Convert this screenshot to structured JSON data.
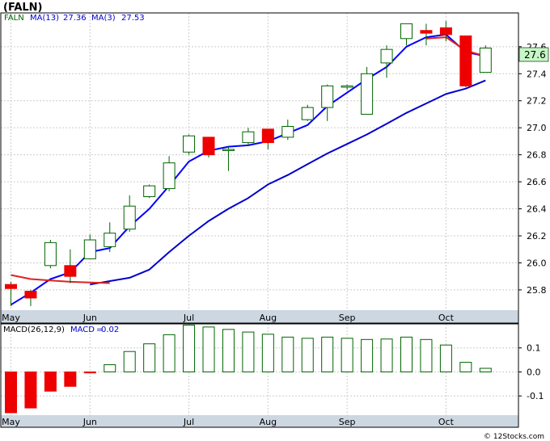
{
  "ticker_title": "(FALN)",
  "watermark": "© 12Stocks.com",
  "colors": {
    "up_fill": "#ffffff",
    "up_stroke": "#006400",
    "down_fill": "#ee0000",
    "ma_fast": "#0000ff",
    "ma_slow": "#0000cc",
    "ma_short_tail": "#dd2222",
    "last_price_box": "#c6f7c6",
    "grid": "#cccccc",
    "panel_border": "#000000",
    "axis_strip": "#cdd7e2"
  },
  "chart_data": [
    {
      "type": "candlestick",
      "legend": [
        {
          "label": "FALN",
          "color": "#006400"
        },
        {
          "label": "MA(13)",
          "value": "27.36",
          "color": "#0000cc"
        },
        {
          "label": "MA(3)",
          "value": "27.53",
          "color": "#0000cc"
        }
      ],
      "last_price_label": "27.6",
      "ylim": [
        25.65,
        27.85
      ],
      "yticks": [
        "25.8",
        "26.0",
        "26.2",
        "26.4",
        "26.6",
        "26.8",
        "27.0",
        "27.2",
        "27.4",
        "27.6"
      ],
      "x_labels": [
        {
          "label": "May",
          "index": 1
        },
        {
          "label": "Jun",
          "index": 5
        },
        {
          "label": "Jul",
          "index": 10
        },
        {
          "label": "Aug",
          "index": 14
        },
        {
          "label": "Sep",
          "index": 18
        },
        {
          "label": "Oct",
          "index": 23
        }
      ],
      "candles": [
        {
          "open": 25.84,
          "high": 25.86,
          "low": 25.68,
          "close": 25.81
        },
        {
          "open": 25.79,
          "high": 25.8,
          "low": 25.68,
          "close": 25.74
        },
        {
          "open": 25.98,
          "high": 26.17,
          "low": 25.96,
          "close": 26.15
        },
        {
          "open": 25.98,
          "high": 26.1,
          "low": 25.85,
          "close": 25.9
        },
        {
          "open": 26.03,
          "high": 26.21,
          "low": 26.03,
          "close": 26.17
        },
        {
          "open": 26.12,
          "high": 26.3,
          "low": 26.08,
          "close": 26.22
        },
        {
          "open": 26.25,
          "high": 26.5,
          "low": 26.23,
          "close": 26.42
        },
        {
          "open": 26.49,
          "high": 26.58,
          "low": 26.48,
          "close": 26.57
        },
        {
          "open": 26.55,
          "high": 26.79,
          "low": 26.53,
          "close": 26.74
        },
        {
          "open": 26.82,
          "high": 26.95,
          "low": 26.8,
          "close": 26.94
        },
        {
          "open": 26.93,
          "high": 26.93,
          "low": 26.78,
          "close": 26.8
        },
        {
          "open": 26.84,
          "high": 26.86,
          "low": 26.68,
          "close": 26.84
        },
        {
          "open": 26.89,
          "high": 27.0,
          "low": 26.87,
          "close": 26.97
        },
        {
          "open": 26.99,
          "high": 26.99,
          "low": 26.84,
          "close": 26.89
        },
        {
          "open": 26.93,
          "high": 27.06,
          "low": 26.91,
          "close": 27.01
        },
        {
          "open": 27.06,
          "high": 27.17,
          "low": 27.05,
          "close": 27.15
        },
        {
          "open": 27.15,
          "high": 27.32,
          "low": 27.05,
          "close": 27.31
        },
        {
          "open": 27.3,
          "high": 27.32,
          "low": 27.28,
          "close": 27.31
        },
        {
          "open": 27.1,
          "high": 27.45,
          "low": 27.1,
          "close": 27.4
        },
        {
          "open": 27.48,
          "high": 27.61,
          "low": 27.37,
          "close": 27.58
        },
        {
          "open": 27.66,
          "high": 27.77,
          "low": 27.61,
          "close": 27.77
        },
        {
          "open": 27.72,
          "high": 27.77,
          "low": 27.61,
          "close": 27.7
        },
        {
          "open": 27.74,
          "high": 27.79,
          "low": 27.64,
          "close": 27.69
        },
        {
          "open": 27.68,
          "high": 27.68,
          "low": 27.3,
          "close": 27.31
        },
        {
          "open": 27.41,
          "high": 27.61,
          "low": 27.41,
          "close": 27.59
        }
      ],
      "ma13": [
        {
          "index": 5,
          "value": 25.84
        },
        {
          "index": 7,
          "value": 25.89
        },
        {
          "index": 8,
          "value": 25.95
        },
        {
          "index": 9,
          "value": 26.08
        },
        {
          "index": 10,
          "value": 26.2
        },
        {
          "index": 11,
          "value": 26.31
        },
        {
          "index": 12,
          "value": 26.4
        },
        {
          "index": 13,
          "value": 26.48
        },
        {
          "index": 14,
          "value": 26.58
        },
        {
          "index": 15,
          "value": 26.65
        },
        {
          "index": 16,
          "value": 26.73
        },
        {
          "index": 17,
          "value": 26.81
        },
        {
          "index": 18,
          "value": 26.88
        },
        {
          "index": 19,
          "value": 26.95
        },
        {
          "index": 20,
          "value": 27.03
        },
        {
          "index": 21,
          "value": 27.11
        },
        {
          "index": 22,
          "value": 27.18
        },
        {
          "index": 23,
          "value": 27.25
        },
        {
          "index": 24,
          "value": 27.29
        },
        {
          "index": 25,
          "value": 27.35
        }
      ],
      "ma3": [
        {
          "index": 1,
          "value": 25.69
        },
        {
          "index": 2,
          "value": 25.78
        },
        {
          "index": 3,
          "value": 25.88
        },
        {
          "index": 4,
          "value": 25.93
        },
        {
          "index": 5,
          "value": 26.08
        },
        {
          "index": 6,
          "value": 26.11
        },
        {
          "index": 7,
          "value": 26.27
        },
        {
          "index": 8,
          "value": 26.4
        },
        {
          "index": 9,
          "value": 26.57
        },
        {
          "index": 10,
          "value": 26.75
        },
        {
          "index": 11,
          "value": 26.83
        },
        {
          "index": 12,
          "value": 26.86
        },
        {
          "index": 13,
          "value": 26.87
        },
        {
          "index": 14,
          "value": 26.9
        },
        {
          "index": 15,
          "value": 26.96
        },
        {
          "index": 16,
          "value": 27.02
        },
        {
          "index": 17,
          "value": 27.16
        },
        {
          "index": 18,
          "value": 27.26
        },
        {
          "index": 19,
          "value": 27.36
        },
        {
          "index": 20,
          "value": 27.45
        },
        {
          "index": 21,
          "value": 27.6
        },
        {
          "index": 22,
          "value": 27.67
        },
        {
          "index": 23,
          "value": 27.69
        },
        {
          "index": 24,
          "value": 27.56
        },
        {
          "index": 25,
          "value": 27.53
        }
      ],
      "ma3_red_segments": [
        [
          {
            "index": 1,
            "value": 25.91
          },
          {
            "index": 2,
            "value": 25.88
          },
          {
            "index": 3,
            "value": 25.87
          },
          {
            "index": 4,
            "value": 25.86
          },
          {
            "index": 5,
            "value": 25.855
          },
          {
            "index": 6,
            "value": 25.85
          }
        ],
        [
          {
            "index": 22,
            "value": 27.66
          },
          {
            "index": 23,
            "value": 27.67
          },
          {
            "index": 24,
            "value": 27.57
          },
          {
            "index": 25,
            "value": 27.53
          }
        ]
      ]
    },
    {
      "type": "bar",
      "legend": [
        {
          "label": "MACD(26,12,9)",
          "color": "#000000"
        },
        {
          "label": "MACD",
          "value": "0.02",
          "color": "#0000cc"
        }
      ],
      "ylim": [
        -0.18,
        0.2
      ],
      "yticks": [
        "0.1",
        "0.0",
        "-0.1"
      ],
      "values": [
        -0.17,
        -0.15,
        -0.08,
        -0.06,
        -0.002,
        0.03,
        0.085,
        0.117,
        0.155,
        0.195,
        0.187,
        0.177,
        0.166,
        0.157,
        0.145,
        0.14,
        0.145,
        0.14,
        0.135,
        0.137,
        0.145,
        0.135,
        0.112,
        0.04,
        0.015
      ]
    }
  ]
}
